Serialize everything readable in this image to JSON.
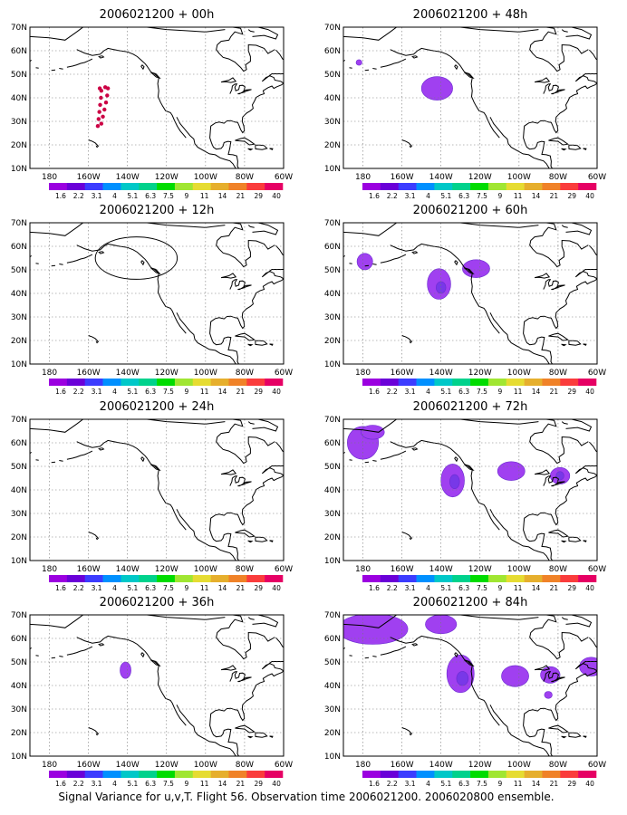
{
  "caption": "Signal Variance for u,v,T. Flight 56. Observation time 2006021200. 2006020800 ensemble.",
  "colorbar": {
    "labels": [
      "1.6",
      "2.2",
      "3.1",
      "4",
      "5.1",
      "6.3",
      "7.5",
      "9",
      "11",
      "14",
      "21",
      "29",
      "40"
    ],
    "colors": [
      "#9b00e0",
      "#6a00d8",
      "#3c3cff",
      "#0090ff",
      "#00c8c8",
      "#00d28c",
      "#00dc00",
      "#a0e632",
      "#e6dc32",
      "#e6af2d",
      "#f08228",
      "#fa3c3c",
      "#e60064"
    ]
  },
  "colors": {
    "variance_outer": "#a040f0",
    "variance_inner": "#7838e8",
    "variance_core": "#5a3cdc",
    "track": "#cc0044",
    "coast": "#000000",
    "grid": "#777777"
  },
  "chart_data": [
    {
      "type": "heatmap",
      "title": "2006021200 + 00h",
      "xlim": [
        -190,
        -60
      ],
      "ylim": [
        10,
        70
      ],
      "xticks": [
        "180",
        "160W",
        "140W",
        "120W",
        "100W",
        "80W",
        "60W"
      ],
      "yticks": [
        "10N",
        "20N",
        "30N",
        "40N",
        "50N",
        "60N",
        "70N"
      ],
      "grid": true,
      "observation_track": [
        {
          "lon": -155.2,
          "lat": 28
        },
        {
          "lon": -154.8,
          "lat": 31
        },
        {
          "lon": -154.4,
          "lat": 34
        },
        {
          "lon": -154.0,
          "lat": 37
        },
        {
          "lon": -153.6,
          "lat": 40
        },
        {
          "lon": -153.4,
          "lat": 43
        },
        {
          "lon": -154.2,
          "lat": 44
        },
        {
          "lon": -153.4,
          "lat": 29
        },
        {
          "lon": -152.6,
          "lat": 32
        },
        {
          "lon": -151.8,
          "lat": 35
        },
        {
          "lon": -151.0,
          "lat": 38
        },
        {
          "lon": -150.4,
          "lat": 41
        },
        {
          "lon": -150.0,
          "lat": 44
        },
        {
          "lon": -151.4,
          "lat": 44.5
        }
      ],
      "variance_regions": []
    },
    {
      "type": "heatmap",
      "title": "2006021200 + 48h",
      "xlim": [
        -190,
        -60
      ],
      "ylim": [
        10,
        70
      ],
      "xticks": [
        "180",
        "160W",
        "140W",
        "120W",
        "100W",
        "80W",
        "60W"
      ],
      "yticks": [
        "10N",
        "20N",
        "30N",
        "40N",
        "50N",
        "60N",
        "70N"
      ],
      "grid": true,
      "variance_regions": [
        {
          "lon": -182,
          "lat": 55,
          "rlon": 1.5,
          "rlat": 1.2,
          "level": "1.6"
        },
        {
          "lon": -142,
          "lat": 44,
          "rlon": 8,
          "rlat": 5,
          "level": "1.6"
        }
      ]
    },
    {
      "type": "heatmap",
      "title": "2006021200 + 12h",
      "xlim": [
        -190,
        -60
      ],
      "ylim": [
        10,
        70
      ],
      "xticks": [
        "180",
        "160W",
        "140W",
        "120W",
        "100W",
        "80W",
        "60W"
      ],
      "yticks": [
        "10N",
        "20N",
        "30N",
        "40N",
        "50N",
        "60N",
        "70N"
      ],
      "grid": true,
      "highlight_ellipse": {
        "lon": -135.5,
        "lat": 55,
        "rlon": 21,
        "rlat": 9
      },
      "variance_regions": []
    },
    {
      "type": "heatmap",
      "title": "2006021200 + 60h",
      "xlim": [
        -190,
        -60
      ],
      "ylim": [
        10,
        70
      ],
      "xticks": [
        "180",
        "160W",
        "140W",
        "120W",
        "100W",
        "80W",
        "60W"
      ],
      "yticks": [
        "10N",
        "20N",
        "30N",
        "40N",
        "50N",
        "60N",
        "70N"
      ],
      "grid": true,
      "variance_regions": [
        {
          "lon": -179,
          "lat": 53.5,
          "rlon": 4,
          "rlat": 3.5,
          "level": "1.6"
        },
        {
          "lon": -141,
          "lat": 44,
          "rlon": 6,
          "rlat": 6.5,
          "level": "1.6"
        },
        {
          "lon": -140,
          "lat": 42.5,
          "rlon": 2.5,
          "rlat": 2.5,
          "level": "2.2"
        },
        {
          "lon": -122,
          "lat": 50.5,
          "rlon": 7,
          "rlat": 3.8,
          "level": "1.6"
        }
      ]
    },
    {
      "type": "heatmap",
      "title": "2006021200 + 24h",
      "xlim": [
        -190,
        -60
      ],
      "ylim": [
        10,
        70
      ],
      "xticks": [
        "180",
        "160W",
        "140W",
        "120W",
        "100W",
        "80W",
        "60W"
      ],
      "yticks": [
        "10N",
        "20N",
        "30N",
        "40N",
        "50N",
        "60N",
        "70N"
      ],
      "grid": true,
      "variance_regions": []
    },
    {
      "type": "heatmap",
      "title": "2006021200 + 72h",
      "xlim": [
        -190,
        -60
      ],
      "ylim": [
        10,
        70
      ],
      "xticks": [
        "180",
        "160W",
        "140W",
        "120W",
        "100W",
        "80W",
        "60W"
      ],
      "yticks": [
        "10N",
        "20N",
        "30N",
        "40N",
        "50N",
        "60N",
        "70N"
      ],
      "grid": true,
      "variance_regions": [
        {
          "lon": -180,
          "lat": 60,
          "rlon": 8,
          "rlat": 7,
          "level": "1.6"
        },
        {
          "lon": -175,
          "lat": 64.5,
          "rlon": 6,
          "rlat": 3,
          "level": "1.6"
        },
        {
          "lon": -134,
          "lat": 44,
          "rlon": 6,
          "rlat": 7,
          "level": "1.6"
        },
        {
          "lon": -133,
          "lat": 43.5,
          "rlon": 2.5,
          "rlat": 3,
          "level": "2.2"
        },
        {
          "lon": -104,
          "lat": 48,
          "rlon": 7,
          "rlat": 4,
          "level": "1.6"
        },
        {
          "lon": -79,
          "lat": 46,
          "rlon": 5,
          "rlat": 3.5,
          "level": "1.6"
        },
        {
          "lon": -79,
          "lat": 46,
          "rlon": 2,
          "rlat": 1.8,
          "level": "2.2"
        }
      ]
    },
    {
      "type": "heatmap",
      "title": "2006021200 + 36h",
      "xlim": [
        -190,
        -60
      ],
      "ylim": [
        10,
        70
      ],
      "xticks": [
        "180",
        "160W",
        "140W",
        "120W",
        "100W",
        "80W",
        "60W"
      ],
      "yticks": [
        "10N",
        "20N",
        "30N",
        "40N",
        "50N",
        "60N",
        "70N"
      ],
      "grid": true,
      "variance_regions": [
        {
          "lon": -141,
          "lat": 46.5,
          "rlon": 2.8,
          "rlat": 3.5,
          "level": "1.6"
        }
      ]
    },
    {
      "type": "heatmap",
      "title": "2006021200 + 84h",
      "xlim": [
        -190,
        -60
      ],
      "ylim": [
        10,
        70
      ],
      "xticks": [
        "180",
        "160W",
        "140W",
        "120W",
        "100W",
        "80W",
        "60W"
      ],
      "yticks": [
        "10N",
        "20N",
        "30N",
        "40N",
        "50N",
        "60N",
        "70N"
      ],
      "grid": true,
      "variance_regions": [
        {
          "lon": -175,
          "lat": 64,
          "rlon": 18,
          "rlat": 6.5,
          "level": "1.6"
        },
        {
          "lon": -140,
          "lat": 66,
          "rlon": 8,
          "rlat": 4,
          "level": "1.6"
        },
        {
          "lon": -130,
          "lat": 45,
          "rlon": 7,
          "rlat": 8,
          "level": "1.6"
        },
        {
          "lon": -129,
          "lat": 43,
          "rlon": 3,
          "rlat": 3,
          "level": "2.2"
        },
        {
          "lon": -102,
          "lat": 44,
          "rlon": 7,
          "rlat": 4.5,
          "level": "1.6"
        },
        {
          "lon": -84,
          "lat": 44.5,
          "rlon": 5,
          "rlat": 3.5,
          "level": "1.6"
        },
        {
          "lon": -63,
          "lat": 48,
          "rlon": 6,
          "rlat": 4,
          "level": "1.6"
        },
        {
          "lon": -85,
          "lat": 36,
          "rlon": 2,
          "rlat": 1.5,
          "level": "1.6"
        }
      ]
    }
  ]
}
